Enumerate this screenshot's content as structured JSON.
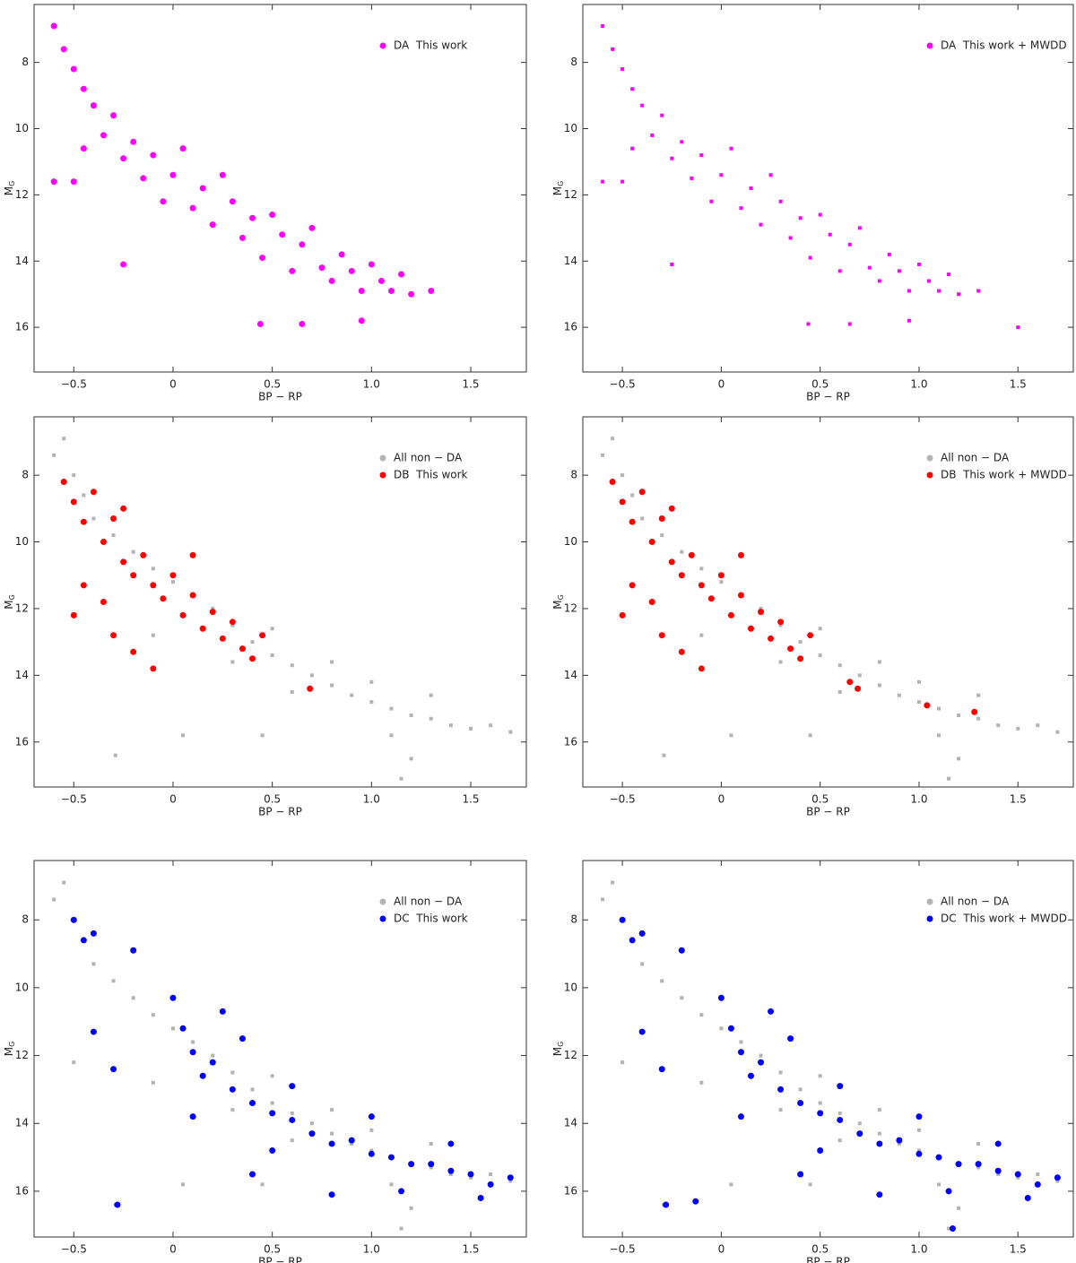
{
  "chart_data": [
    {
      "type": "scatter",
      "xlabel": "BP − RP",
      "ylabel": {
        "main": "M",
        "sub": "G"
      },
      "xlim": [
        -0.7,
        1.78
      ],
      "ylim": [
        6.25,
        17.35
      ],
      "y_inverted": true,
      "legend": "upper right",
      "xticks": [
        {
          "value": -0.5,
          "label": "−0.5"
        },
        0,
        0.5,
        {
          "value": 1.0,
          "label": "1.0"
        },
        1.5
      ],
      "yticks": [
        8,
        10,
        12,
        14,
        16
      ],
      "series": [
        {
          "name": "DA  This work",
          "color": "#ff00ff",
          "marker": "circle",
          "x": [
            -0.6,
            -0.55,
            -0.5,
            -0.45,
            -0.4,
            -0.45,
            -0.5,
            -0.35,
            -0.3,
            -0.25,
            -0.2,
            -0.15,
            -0.1,
            -0.05,
            0,
            0.05,
            0.1,
            0.15,
            0.2,
            0.25,
            0.3,
            0.35,
            0.4,
            0.45,
            0.5,
            0.55,
            0.6,
            0.65,
            0.7,
            0.75,
            0.8,
            0.85,
            0.9,
            0.95,
            1.0,
            1.05,
            1.1,
            1.15,
            1.2,
            1.3,
            0.44,
            0.65,
            0.95,
            -0.25,
            -0.6
          ],
          "values": [
            6.9,
            7.6,
            8.2,
            8.8,
            9.3,
            10.6,
            11.6,
            10.2,
            9.6,
            10.9,
            10.4,
            11.5,
            10.8,
            12.2,
            11.4,
            10.6,
            12.4,
            11.8,
            12.9,
            11.4,
            12.2,
            13.3,
            12.7,
            13.9,
            12.6,
            13.2,
            14.3,
            13.5,
            13.0,
            14.2,
            14.6,
            13.8,
            14.3,
            14.9,
            14.1,
            14.6,
            14.9,
            14.4,
            15.0,
            14.9,
            15.9,
            15.9,
            15.8,
            14.1,
            11.6
          ]
        }
      ]
    },
    {
      "type": "scatter",
      "xlabel": "BP − RP",
      "ylabel": {
        "main": "M",
        "sub": "G"
      },
      "xlim": [
        -0.7,
        1.78
      ],
      "ylim": [
        6.25,
        17.35
      ],
      "y_inverted": true,
      "legend": "upper right",
      "xticks": [
        {
          "value": -0.5,
          "label": "−0.5"
        },
        0,
        0.5,
        {
          "value": 1.0,
          "label": "1.0"
        },
        1.5
      ],
      "yticks": [
        8,
        10,
        12,
        14,
        16
      ],
      "series": [
        {
          "name": "DA  This work + MWDD",
          "color": "#ff00ff",
          "marker": "square",
          "x": [
            -0.6,
            -0.55,
            -0.5,
            -0.45,
            -0.4,
            -0.45,
            -0.5,
            -0.35,
            -0.3,
            -0.25,
            -0.2,
            -0.15,
            -0.1,
            -0.05,
            0,
            0.05,
            0.1,
            0.15,
            0.2,
            0.25,
            0.3,
            0.35,
            0.4,
            0.45,
            0.5,
            0.55,
            0.6,
            0.65,
            0.7,
            0.75,
            0.8,
            0.85,
            0.9,
            0.95,
            1.0,
            1.05,
            1.1,
            1.15,
            1.2,
            1.3,
            0.44,
            0.65,
            0.95,
            -0.25,
            -0.6,
            1.5
          ],
          "values": [
            6.9,
            7.6,
            8.2,
            8.8,
            9.3,
            10.6,
            11.6,
            10.2,
            9.6,
            10.9,
            10.4,
            11.5,
            10.8,
            12.2,
            11.4,
            10.6,
            12.4,
            11.8,
            12.9,
            11.4,
            12.2,
            13.3,
            12.7,
            13.9,
            12.6,
            13.2,
            14.3,
            13.5,
            13.0,
            14.2,
            14.6,
            13.8,
            14.3,
            14.9,
            14.1,
            14.6,
            14.9,
            14.4,
            15.0,
            14.9,
            15.9,
            15.9,
            15.8,
            14.1,
            11.6,
            16.0
          ]
        }
      ]
    },
    {
      "type": "scatter",
      "xlabel": "BP − RP",
      "ylabel": {
        "main": "M",
        "sub": "G"
      },
      "xlim": [
        -0.7,
        1.78
      ],
      "ylim": [
        6.25,
        17.35
      ],
      "y_inverted": true,
      "legend": "upper right",
      "xticks": [
        {
          "value": -0.5,
          "label": "−0.5"
        },
        0,
        0.5,
        {
          "value": 1.0,
          "label": "1.0"
        },
        1.5
      ],
      "yticks": [
        8,
        10,
        12,
        14,
        16
      ],
      "series": [
        {
          "name": "All non − DA",
          "color": "#b3b3b3",
          "marker": "square",
          "x": [
            -0.6,
            -0.55,
            -0.5,
            -0.45,
            -0.4,
            -0.3,
            -0.2,
            -0.1,
            0,
            0.1,
            0.2,
            0.3,
            0.4,
            0.5,
            0.6,
            0.7,
            0.8,
            0.9,
            1.0,
            1.1,
            1.2,
            1.3,
            1.4,
            1.5,
            1.6,
            1.7,
            0.5,
            0.8,
            1.0,
            1.3,
            0.3,
            0.6,
            1.1,
            0.05,
            0.45,
            1.2,
            -0.29,
            1.15,
            -0.5,
            -0.1
          ],
          "values": [
            7.4,
            6.9,
            8.0,
            8.6,
            9.3,
            9.8,
            10.3,
            10.8,
            11.2,
            11.6,
            12.0,
            12.5,
            13.0,
            13.4,
            13.7,
            14.0,
            14.3,
            14.6,
            14.8,
            15.0,
            15.2,
            15.3,
            15.5,
            15.6,
            15.5,
            15.7,
            12.6,
            13.6,
            14.2,
            14.6,
            13.6,
            14.5,
            15.8,
            15.8,
            15.8,
            16.5,
            16.4,
            17.1,
            12.2,
            12.8
          ]
        },
        {
          "name": "DB  This work",
          "color": "#ff0000",
          "marker": "circle",
          "x": [
            -0.55,
            -0.5,
            -0.45,
            -0.4,
            -0.35,
            -0.3,
            -0.25,
            -0.2,
            -0.15,
            -0.1,
            -0.05,
            0,
            0.05,
            0.1,
            0.15,
            0.2,
            0.25,
            0.3,
            0.35,
            0.4,
            0.45,
            -0.5,
            -0.45,
            -0.3,
            -0.2,
            -0.1,
            -0.25,
            0.69,
            0.1,
            -0.35
          ],
          "values": [
            8.2,
            8.8,
            9.4,
            8.5,
            10.0,
            9.3,
            10.6,
            11.0,
            10.4,
            11.3,
            11.7,
            11.0,
            12.2,
            11.6,
            12.6,
            12.1,
            12.9,
            12.4,
            13.2,
            13.5,
            12.8,
            12.2,
            11.3,
            12.8,
            13.3,
            13.8,
            9.0,
            14.4,
            10.4,
            11.8
          ]
        }
      ]
    },
    {
      "type": "scatter",
      "xlabel": "BP − RP",
      "ylabel": {
        "main": "M",
        "sub": "G"
      },
      "xlim": [
        -0.7,
        1.78
      ],
      "ylim": [
        6.25,
        17.35
      ],
      "y_inverted": true,
      "legend": "upper right",
      "xticks": [
        {
          "value": -0.5,
          "label": "−0.5"
        },
        0,
        0.5,
        {
          "value": 1.0,
          "label": "1.0"
        },
        1.5
      ],
      "yticks": [
        8,
        10,
        12,
        14,
        16
      ],
      "series": [
        {
          "name": "All non − DA",
          "color": "#b3b3b3",
          "marker": "square",
          "x": [
            -0.6,
            -0.55,
            -0.5,
            -0.45,
            -0.4,
            -0.3,
            -0.2,
            -0.1,
            0,
            0.1,
            0.2,
            0.3,
            0.4,
            0.5,
            0.6,
            0.7,
            0.8,
            0.9,
            1.0,
            1.1,
            1.2,
            1.3,
            1.4,
            1.5,
            1.6,
            1.7,
            0.5,
            0.8,
            1.0,
            1.3,
            0.3,
            0.6,
            1.1,
            0.05,
            0.45,
            1.2,
            -0.29,
            1.15,
            -0.5,
            -0.1
          ],
          "values": [
            7.4,
            6.9,
            8.0,
            8.6,
            9.3,
            9.8,
            10.3,
            10.8,
            11.2,
            11.6,
            12.0,
            12.5,
            13.0,
            13.4,
            13.7,
            14.0,
            14.3,
            14.6,
            14.8,
            15.0,
            15.2,
            15.3,
            15.5,
            15.6,
            15.5,
            15.7,
            12.6,
            13.6,
            14.2,
            14.6,
            13.6,
            14.5,
            15.8,
            15.8,
            15.8,
            16.5,
            16.4,
            17.1,
            12.2,
            12.8
          ]
        },
        {
          "name": "DB  This work + MWDD",
          "color": "#ff0000",
          "marker": "circle",
          "x": [
            -0.55,
            -0.5,
            -0.45,
            -0.4,
            -0.35,
            -0.3,
            -0.25,
            -0.2,
            -0.15,
            -0.1,
            -0.05,
            0,
            0.05,
            0.1,
            0.15,
            0.2,
            0.25,
            0.3,
            0.35,
            0.4,
            0.45,
            -0.5,
            -0.45,
            -0.3,
            -0.2,
            -0.1,
            -0.25,
            0.69,
            0.1,
            -0.35,
            1.04,
            1.28,
            0.65
          ],
          "values": [
            8.2,
            8.8,
            9.4,
            8.5,
            10.0,
            9.3,
            10.6,
            11.0,
            10.4,
            11.3,
            11.7,
            11.0,
            12.2,
            11.6,
            12.6,
            12.1,
            12.9,
            12.4,
            13.2,
            13.5,
            12.8,
            12.2,
            11.3,
            12.8,
            13.3,
            13.8,
            9.0,
            14.4,
            10.4,
            11.8,
            14.9,
            15.1,
            14.2
          ]
        }
      ]
    },
    {
      "type": "scatter",
      "xlabel": "BP − RP",
      "ylabel": {
        "main": "M",
        "sub": "G"
      },
      "xlim": [
        -0.7,
        1.78
      ],
      "ylim": [
        6.25,
        17.35
      ],
      "y_inverted": true,
      "legend": "upper right",
      "xticks": [
        {
          "value": -0.5,
          "label": "−0.5"
        },
        0,
        0.5,
        {
          "value": 1.0,
          "label": "1.0"
        },
        1.5
      ],
      "yticks": [
        8,
        10,
        12,
        14,
        16
      ],
      "series": [
        {
          "name": "All non − DA",
          "color": "#b3b3b3",
          "marker": "square",
          "x": [
            -0.6,
            -0.55,
            -0.5,
            -0.45,
            -0.4,
            -0.3,
            -0.2,
            -0.1,
            0,
            0.1,
            0.2,
            0.3,
            0.4,
            0.5,
            0.6,
            0.7,
            0.8,
            0.9,
            1.0,
            1.1,
            1.2,
            1.3,
            1.4,
            1.5,
            1.6,
            1.7,
            0.5,
            0.8,
            1.0,
            1.3,
            0.3,
            0.6,
            1.1,
            0.05,
            0.45,
            1.2,
            -0.29,
            1.15,
            -0.5,
            -0.1
          ],
          "values": [
            7.4,
            6.9,
            8.0,
            8.6,
            9.3,
            9.8,
            10.3,
            10.8,
            11.2,
            11.6,
            12.0,
            12.5,
            13.0,
            13.4,
            13.7,
            14.0,
            14.3,
            14.6,
            14.8,
            15.0,
            15.2,
            15.3,
            15.5,
            15.6,
            15.5,
            15.7,
            12.6,
            13.6,
            14.2,
            14.6,
            13.6,
            14.5,
            15.8,
            15.8,
            15.8,
            16.5,
            16.4,
            17.1,
            12.2,
            12.8
          ]
        },
        {
          "name": "DC  This work",
          "color": "#0000ff",
          "marker": "circle",
          "x": [
            -0.5,
            -0.45,
            -0.4,
            -0.2,
            0,
            0.05,
            0.1,
            0.15,
            0.2,
            0.3,
            0.4,
            0.5,
            0.6,
            0.7,
            0.8,
            0.9,
            1.0,
            1.1,
            1.2,
            1.3,
            1.4,
            1.5,
            1.6,
            1.7,
            0.35,
            0.6,
            1.0,
            1.4,
            0.1,
            0.5,
            0.8,
            1.15,
            -0.28,
            -0.4,
            -0.3,
            0.4,
            1.55,
            0.25
          ],
          "values": [
            8.0,
            8.6,
            8.4,
            8.9,
            10.3,
            11.2,
            11.9,
            12.6,
            12.2,
            13.0,
            13.4,
            13.7,
            13.9,
            14.3,
            14.6,
            14.5,
            14.9,
            15.0,
            15.2,
            15.2,
            15.4,
            15.5,
            15.8,
            15.6,
            11.5,
            12.9,
            13.8,
            14.6,
            13.8,
            14.8,
            16.1,
            16.0,
            16.4,
            11.3,
            12.4,
            15.5,
            16.2,
            10.7
          ]
        }
      ]
    },
    {
      "type": "scatter",
      "xlabel": "BP − RP",
      "ylabel": {
        "main": "M",
        "sub": "G"
      },
      "xlim": [
        -0.7,
        1.78
      ],
      "ylim": [
        6.25,
        17.35
      ],
      "y_inverted": true,
      "legend": "upper right",
      "xticks": [
        {
          "value": -0.5,
          "label": "−0.5"
        },
        0,
        0.5,
        {
          "value": 1.0,
          "label": "1.0"
        },
        1.5
      ],
      "yticks": [
        8,
        10,
        12,
        14,
        16
      ],
      "series": [
        {
          "name": "All non − DA",
          "color": "#b3b3b3",
          "marker": "square",
          "x": [
            -0.6,
            -0.55,
            -0.5,
            -0.45,
            -0.4,
            -0.3,
            -0.2,
            -0.1,
            0,
            0.1,
            0.2,
            0.3,
            0.4,
            0.5,
            0.6,
            0.7,
            0.8,
            0.9,
            1.0,
            1.1,
            1.2,
            1.3,
            1.4,
            1.5,
            1.6,
            1.7,
            0.5,
            0.8,
            1.0,
            1.3,
            0.3,
            0.6,
            1.1,
            0.05,
            0.45,
            1.2,
            -0.29,
            1.15,
            -0.5,
            -0.1
          ],
          "values": [
            7.4,
            6.9,
            8.0,
            8.6,
            9.3,
            9.8,
            10.3,
            10.8,
            11.2,
            11.6,
            12.0,
            12.5,
            13.0,
            13.4,
            13.7,
            14.0,
            14.3,
            14.6,
            14.8,
            15.0,
            15.2,
            15.3,
            15.5,
            15.6,
            15.5,
            15.7,
            12.6,
            13.6,
            14.2,
            14.6,
            13.6,
            14.5,
            15.8,
            15.8,
            15.8,
            16.5,
            16.4,
            17.1,
            12.2,
            12.8
          ]
        },
        {
          "name": "DC  This work + MWDD",
          "color": "#0000ff",
          "marker": "circle",
          "x": [
            -0.5,
            -0.45,
            -0.4,
            -0.2,
            0,
            0.05,
            0.1,
            0.15,
            0.2,
            0.3,
            0.4,
            0.5,
            0.6,
            0.7,
            0.8,
            0.9,
            1.0,
            1.1,
            1.2,
            1.3,
            1.4,
            1.5,
            1.6,
            1.7,
            0.35,
            0.6,
            1.0,
            1.4,
            0.1,
            0.5,
            0.8,
            1.15,
            -0.28,
            -0.4,
            -0.3,
            0.4,
            1.55,
            0.25,
            -0.13,
            1.17
          ],
          "values": [
            8.0,
            8.6,
            8.4,
            8.9,
            10.3,
            11.2,
            11.9,
            12.6,
            12.2,
            13.0,
            13.4,
            13.7,
            13.9,
            14.3,
            14.6,
            14.5,
            14.9,
            15.0,
            15.2,
            15.2,
            15.4,
            15.5,
            15.8,
            15.6,
            11.5,
            12.9,
            13.8,
            14.6,
            13.8,
            14.8,
            16.1,
            16.0,
            16.4,
            11.3,
            12.4,
            15.5,
            16.2,
            10.7,
            16.3,
            17.1
          ]
        }
      ]
    }
  ]
}
